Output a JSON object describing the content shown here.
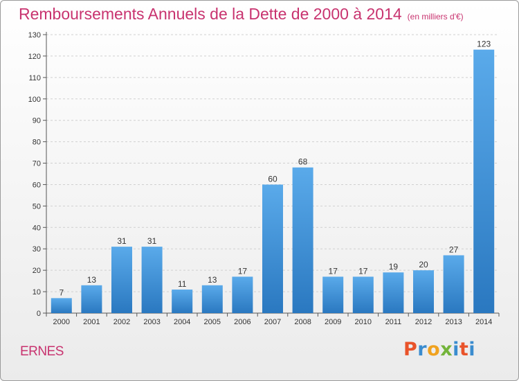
{
  "header": {
    "title": "Remboursements Annuels de la Dette de 2000 à 2014",
    "unit": "(en milliers d'€)"
  },
  "footer": {
    "commune": "ERNES",
    "brand_letters": [
      "P",
      "r",
      "o",
      "x",
      "i",
      "t",
      "i"
    ],
    "brand_colors": [
      "#e9532a",
      "#3a8ccf",
      "#f0a21f",
      "#73b43a",
      "#3a8ccf",
      "#e9532a",
      "#3a8ccf"
    ]
  },
  "chart_data": {
    "type": "bar",
    "categories": [
      "2000",
      "2001",
      "2002",
      "2003",
      "2004",
      "2005",
      "2006",
      "2007",
      "2008",
      "2009",
      "2010",
      "2011",
      "2012",
      "2013",
      "2014"
    ],
    "values": [
      7,
      13,
      31,
      31,
      11,
      13,
      17,
      60,
      68,
      17,
      17,
      19,
      20,
      27,
      123
    ],
    "data_labels": [
      "7",
      "13",
      "31",
      "31",
      "11",
      "13",
      "17",
      "60",
      "68",
      "17",
      "17",
      "19",
      "20",
      "27",
      "123"
    ],
    "ylim": [
      0,
      130
    ],
    "yticks": [
      0,
      10,
      20,
      30,
      40,
      50,
      60,
      70,
      80,
      90,
      100,
      110,
      120,
      130
    ],
    "grid": true,
    "bar_color_top": "#5aaaea",
    "bar_color_bottom": "#2a78c0"
  }
}
